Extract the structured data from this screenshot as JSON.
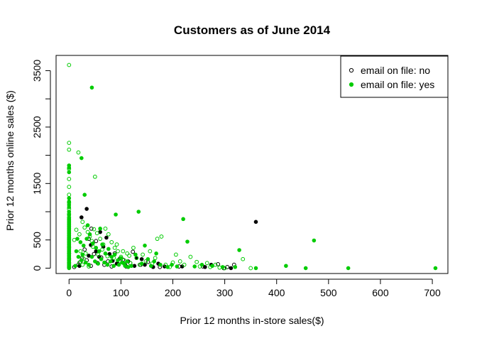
{
  "chart_data": {
    "type": "scatter",
    "title": "Customers as of June 2014",
    "xlabel": "Prior 12 months in-store sales($)",
    "ylabel": "Prior 12 months online sales ($)",
    "xlim": [
      -25,
      730
    ],
    "ylim": [
      -95,
      3770
    ],
    "x_ticks": [
      0,
      100,
      200,
      300,
      400,
      500,
      600,
      700
    ],
    "y_ticks": [
      0,
      500,
      1500,
      2500,
      3500
    ],
    "legend_position": "top-right",
    "legend": [
      {
        "label": "email on file: no",
        "color": "#000000",
        "marker": "open-circle"
      },
      {
        "label": "email on file: yes",
        "color": "#00CC00",
        "marker": "filled-circle"
      }
    ],
    "series": [
      {
        "name": "email on file: no",
        "color": "#000000",
        "open_points": [
          [
            0,
            10
          ],
          [
            0,
            40
          ],
          [
            0,
            90
          ],
          [
            0,
            160
          ],
          [
            0,
            260
          ],
          [
            0,
            370
          ],
          [
            0,
            520
          ],
          [
            10,
            20
          ],
          [
            18,
            60
          ],
          [
            22,
            110
          ],
          [
            25,
            180
          ],
          [
            30,
            330
          ],
          [
            34,
            140
          ],
          [
            38,
            520
          ],
          [
            42,
            40
          ],
          [
            48,
            250
          ],
          [
            55,
            90
          ],
          [
            62,
            190
          ],
          [
            68,
            60
          ],
          [
            75,
            120
          ],
          [
            82,
            30
          ],
          [
            88,
            260
          ],
          [
            95,
            70
          ],
          [
            104,
            150
          ],
          [
            110,
            30
          ],
          [
            118,
            90
          ],
          [
            123,
            290
          ],
          [
            138,
            60
          ],
          [
            152,
            110
          ],
          [
            175,
            20
          ],
          [
            212,
            30
          ],
          [
            258,
            30
          ],
          [
            287,
            70
          ],
          [
            298,
            0
          ],
          [
            305,
            20
          ],
          [
            318,
            60
          ],
          [
            52,
            480
          ],
          [
            43,
            700
          ]
        ],
        "filled_points": [
          [
            24,
            900
          ],
          [
            34,
            1050
          ],
          [
            42,
            410
          ],
          [
            52,
            300
          ],
          [
            58,
            200
          ],
          [
            66,
            380
          ],
          [
            72,
            540
          ],
          [
            78,
            250
          ],
          [
            84,
            130
          ],
          [
            92,
            80
          ],
          [
            98,
            170
          ],
          [
            108,
            60
          ],
          [
            114,
            120
          ],
          [
            126,
            40
          ],
          [
            140,
            160
          ],
          [
            146,
            60
          ],
          [
            162,
            20
          ],
          [
            172,
            80
          ],
          [
            184,
            30
          ],
          [
            218,
            30
          ],
          [
            262,
            20
          ],
          [
            274,
            60
          ],
          [
            312,
            0
          ],
          [
            360,
            820
          ],
          [
            38,
            220
          ],
          [
            60,
            640
          ],
          [
            20,
            40
          ],
          [
            130,
            180
          ]
        ]
      },
      {
        "name": "email on file: yes",
        "color": "#00CC00",
        "open_points": [
          [
            0,
            3600
          ],
          [
            0,
            2220
          ],
          [
            0,
            2100
          ],
          [
            0,
            1760
          ],
          [
            0,
            1580
          ],
          [
            0,
            1440
          ],
          [
            0,
            1300
          ],
          [
            0,
            1160
          ],
          [
            0,
            1050
          ],
          [
            0,
            960
          ],
          [
            0,
            900
          ],
          [
            0,
            860
          ],
          [
            0,
            820
          ],
          [
            0,
            780
          ],
          [
            0,
            740
          ],
          [
            0,
            700
          ],
          [
            0,
            660
          ],
          [
            0,
            620
          ],
          [
            0,
            580
          ],
          [
            0,
            540
          ],
          [
            0,
            500
          ],
          [
            0,
            460
          ],
          [
            0,
            420
          ],
          [
            0,
            380
          ],
          [
            0,
            340
          ],
          [
            0,
            300
          ],
          [
            0,
            260
          ],
          [
            0,
            220
          ],
          [
            0,
            180
          ],
          [
            0,
            140
          ],
          [
            0,
            100
          ],
          [
            0,
            60
          ],
          [
            0,
            20
          ],
          [
            18,
            2050
          ],
          [
            50,
            1620
          ],
          [
            10,
            500
          ],
          [
            14,
            680
          ],
          [
            20,
            600
          ],
          [
            26,
            820
          ],
          [
            30,
            720
          ],
          [
            36,
            640
          ],
          [
            40,
            560
          ],
          [
            44,
            480
          ],
          [
            48,
            690
          ],
          [
            54,
            620
          ],
          [
            60,
            520
          ],
          [
            66,
            420
          ],
          [
            70,
            700
          ],
          [
            76,
            600
          ],
          [
            82,
            460
          ],
          [
            88,
            360
          ],
          [
            94,
            300
          ],
          [
            100,
            200
          ],
          [
            106,
            140
          ],
          [
            112,
            260
          ],
          [
            118,
            90
          ],
          [
            124,
            360
          ],
          [
            130,
            180
          ],
          [
            136,
            60
          ],
          [
            142,
            240
          ],
          [
            148,
            120
          ],
          [
            156,
            300
          ],
          [
            160,
            80
          ],
          [
            166,
            180
          ],
          [
            170,
            520
          ],
          [
            178,
            560
          ],
          [
            186,
            60
          ],
          [
            194,
            20
          ],
          [
            200,
            100
          ],
          [
            206,
            240
          ],
          [
            214,
            120
          ],
          [
            222,
            60
          ],
          [
            234,
            200
          ],
          [
            246,
            110
          ],
          [
            252,
            30
          ],
          [
            266,
            90
          ],
          [
            272,
            20
          ],
          [
            282,
            60
          ],
          [
            290,
            10
          ],
          [
            300,
            0
          ],
          [
            335,
            160
          ],
          [
            350,
            0
          ],
          [
            22,
            300
          ],
          [
            28,
            170
          ],
          [
            32,
            260
          ],
          [
            46,
            380
          ],
          [
            56,
            240
          ],
          [
            64,
            330
          ],
          [
            74,
            210
          ],
          [
            86,
            180
          ],
          [
            92,
            420
          ],
          [
            104,
            300
          ],
          [
            116,
            220
          ],
          [
            20,
            100
          ],
          [
            26,
            60
          ],
          [
            38,
            30
          ]
        ],
        "filled_points": [
          [
            0,
            1820
          ],
          [
            0,
            1780
          ],
          [
            0,
            1700
          ],
          [
            0,
            1240
          ],
          [
            0,
            1180
          ],
          [
            0,
            1120
          ],
          [
            0,
            1080
          ],
          [
            0,
            1000
          ],
          [
            0,
            940
          ],
          [
            0,
            880
          ],
          [
            0,
            840
          ],
          [
            0,
            800
          ],
          [
            0,
            760
          ],
          [
            0,
            720
          ],
          [
            0,
            680
          ],
          [
            0,
            640
          ],
          [
            0,
            600
          ],
          [
            0,
            560
          ],
          [
            0,
            520
          ],
          [
            0,
            480
          ],
          [
            0,
            440
          ],
          [
            0,
            400
          ],
          [
            0,
            360
          ],
          [
            0,
            320
          ],
          [
            0,
            280
          ],
          [
            0,
            240
          ],
          [
            0,
            200
          ],
          [
            0,
            160
          ],
          [
            0,
            120
          ],
          [
            0,
            80
          ],
          [
            0,
            40
          ],
          [
            0,
            0
          ],
          [
            44,
            3200
          ],
          [
            24,
            1950
          ],
          [
            30,
            1300
          ],
          [
            16,
            520
          ],
          [
            22,
            460
          ],
          [
            28,
            400
          ],
          [
            34,
            520
          ],
          [
            40,
            600
          ],
          [
            46,
            440
          ],
          [
            52,
            360
          ],
          [
            58,
            300
          ],
          [
            64,
            420
          ],
          [
            70,
            260
          ],
          [
            76,
            340
          ],
          [
            82,
            200
          ],
          [
            88,
            240
          ],
          [
            94,
            140
          ],
          [
            100,
            180
          ],
          [
            106,
            80
          ],
          [
            112,
            120
          ],
          [
            120,
            40
          ],
          [
            128,
            240
          ],
          [
            134,
            1000
          ],
          [
            140,
            80
          ],
          [
            146,
            400
          ],
          [
            152,
            160
          ],
          [
            158,
            40
          ],
          [
            164,
            120
          ],
          [
            168,
            260
          ],
          [
            176,
            60
          ],
          [
            190,
            20
          ],
          [
            198,
            60
          ],
          [
            208,
            30
          ],
          [
            220,
            870
          ],
          [
            228,
            470
          ],
          [
            242,
            30
          ],
          [
            256,
            60
          ],
          [
            276,
            40
          ],
          [
            296,
            20
          ],
          [
            320,
            20
          ],
          [
            328,
            320
          ],
          [
            360,
            0
          ],
          [
            418,
            40
          ],
          [
            456,
            0
          ],
          [
            472,
            490
          ],
          [
            538,
            0
          ],
          [
            706,
            0
          ],
          [
            18,
            200
          ],
          [
            24,
            140
          ],
          [
            32,
            100
          ],
          [
            38,
            60
          ],
          [
            44,
            200
          ],
          [
            50,
            120
          ],
          [
            56,
            80
          ],
          [
            62,
            160
          ],
          [
            68,
            100
          ],
          [
            74,
            60
          ],
          [
            80,
            120
          ],
          [
            86,
            40
          ],
          [
            90,
            950
          ],
          [
            96,
            60
          ],
          [
            102,
            100
          ],
          [
            108,
            40
          ],
          [
            114,
            20
          ],
          [
            60,
            700
          ],
          [
            36,
            760
          ],
          [
            26,
            240
          ],
          [
            12,
            40
          ],
          [
            14,
            300
          ]
        ]
      }
    ]
  }
}
